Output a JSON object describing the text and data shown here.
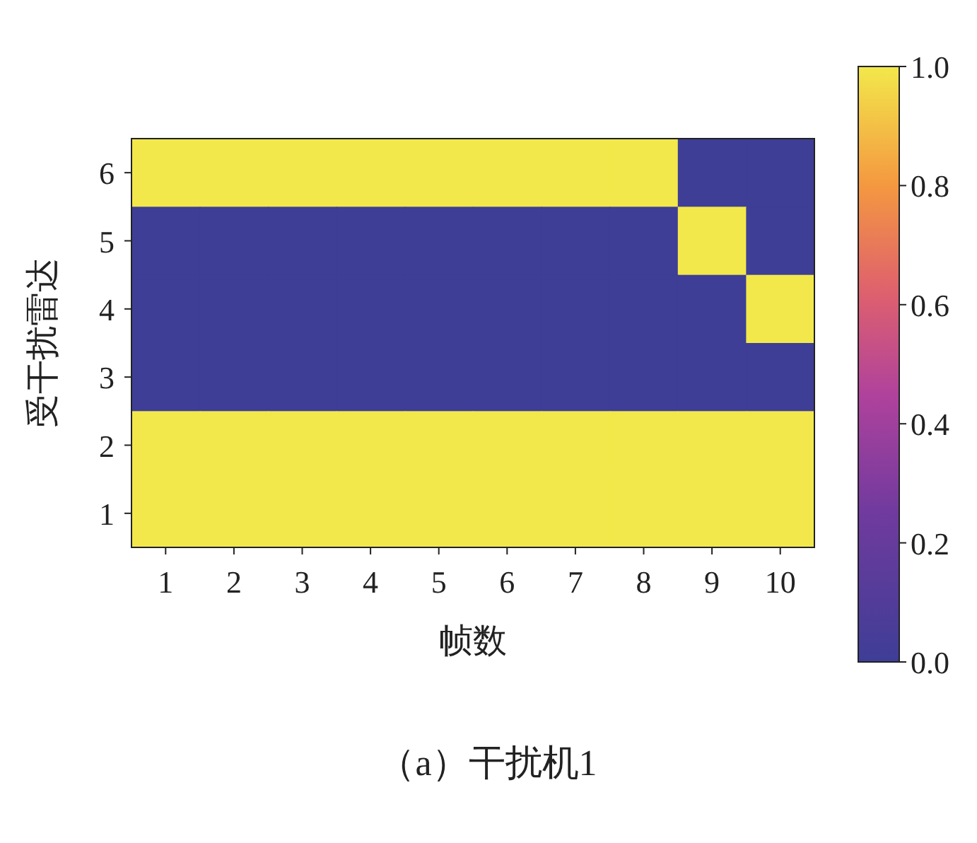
{
  "chart_data": {
    "type": "heatmap",
    "title": "（a）干扰机1",
    "xlabel": "帧数",
    "ylabel": "受干扰雷达",
    "categories": [
      "1",
      "2",
      "3",
      "4",
      "5",
      "6",
      "7",
      "8",
      "9",
      "10"
    ],
    "y_categories": [
      "6",
      "5",
      "4",
      "3",
      "2",
      "1"
    ],
    "cells": [
      [
        1,
        1,
        1,
        1,
        1,
        1,
        1,
        1,
        0,
        0
      ],
      [
        0,
        0,
        0,
        0,
        0,
        0,
        0,
        0,
        1,
        0
      ],
      [
        0,
        0,
        0,
        0,
        0,
        0,
        0,
        0,
        0,
        1
      ],
      [
        0,
        0,
        0,
        0,
        0,
        0,
        0,
        0,
        0,
        0
      ],
      [
        1,
        1,
        1,
        1,
        1,
        1,
        1,
        1,
        1,
        1
      ],
      [
        1,
        1,
        1,
        1,
        1,
        1,
        1,
        1,
        1,
        1
      ]
    ],
    "clim": [
      0,
      1
    ],
    "cticks": [
      {
        "value": 0,
        "label": "0.0"
      },
      {
        "value": 0.2,
        "label": "0.2"
      },
      {
        "value": 0.4,
        "label": "0.4"
      },
      {
        "value": 0.6,
        "label": "0.6"
      },
      {
        "value": 0.8,
        "label": "0.8"
      },
      {
        "value": 1,
        "label": "1.0"
      }
    ]
  }
}
